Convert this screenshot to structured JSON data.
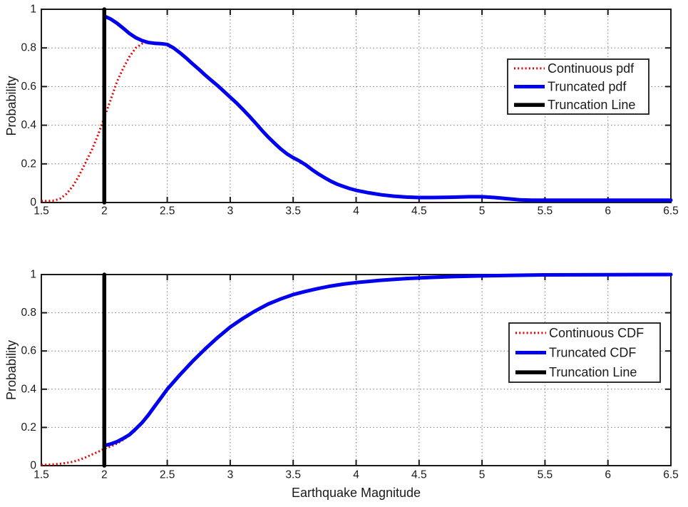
{
  "figure": {
    "background": "#ffffff",
    "border_color": "#1a1a1a",
    "grid_color": "#777777",
    "grid_style": "dotted",
    "x_axis_label": "Earthquake Magnitude"
  },
  "chart_data": [
    {
      "type": "line",
      "name": "truncated-pdf-plot",
      "title": "",
      "xlabel": "",
      "ylabel": "Probability",
      "xlim": [
        1.5,
        6.5
      ],
      "ylim": [
        0,
        1
      ],
      "x_ticks": [
        1.5,
        2,
        2.5,
        3,
        3.5,
        4,
        4.5,
        5,
        5.5,
        6,
        6.5
      ],
      "x_tick_labels": [
        "1.5",
        "2",
        "2.5",
        "3",
        "3.5",
        "4",
        "4.5",
        "5",
        "5.5",
        "6",
        "6.5"
      ],
      "y_ticks": [
        0,
        0.2,
        0.4,
        0.6,
        0.8,
        1
      ],
      "y_tick_labels": [
        "0",
        "0.2",
        "0.4",
        "0.6",
        "0.8",
        "1"
      ],
      "grid": "on",
      "legend_position": "upper-right-inside",
      "legend_entries": [
        "Continuous pdf",
        "Truncated pdf",
        "Truncation Line"
      ],
      "series": [
        {
          "name": "Continuous pdf",
          "color": "#e60000",
          "style": "dotted",
          "width": 3,
          "points": [
            [
              1.5,
              0.008
            ],
            [
              1.55,
              0.008
            ],
            [
              1.6,
              0.01
            ],
            [
              1.65,
              0.02
            ],
            [
              1.7,
              0.045
            ],
            [
              1.75,
              0.085
            ],
            [
              1.8,
              0.14
            ],
            [
              1.85,
              0.205
            ],
            [
              1.9,
              0.27
            ],
            [
              1.95,
              0.35
            ],
            [
              2.0,
              0.44
            ],
            [
              2.05,
              0.53
            ],
            [
              2.1,
              0.625
            ],
            [
              2.15,
              0.695
            ],
            [
              2.2,
              0.755
            ],
            [
              2.25,
              0.8
            ],
            [
              2.3,
              0.822
            ],
            [
              2.35,
              0.83
            ],
            [
              2.4,
              0.827
            ]
          ]
        },
        {
          "name": "Truncated pdf",
          "color": "#0000ee",
          "style": "solid",
          "width": 5,
          "points": [
            [
              2.0,
              0.965
            ],
            [
              2.05,
              0.95
            ],
            [
              2.1,
              0.928
            ],
            [
              2.15,
              0.902
            ],
            [
              2.2,
              0.875
            ],
            [
              2.25,
              0.853
            ],
            [
              2.3,
              0.838
            ],
            [
              2.35,
              0.828
            ],
            [
              2.4,
              0.824
            ],
            [
              2.45,
              0.822
            ],
            [
              2.5,
              0.818
            ],
            [
              2.55,
              0.8
            ],
            [
              2.6,
              0.775
            ],
            [
              2.65,
              0.748
            ],
            [
              2.7,
              0.718
            ],
            [
              2.75,
              0.69
            ],
            [
              2.8,
              0.66
            ],
            [
              2.85,
              0.632
            ],
            [
              2.9,
              0.605
            ],
            [
              2.95,
              0.575
            ],
            [
              3.0,
              0.545
            ],
            [
              3.05,
              0.515
            ],
            [
              3.1,
              0.482
            ],
            [
              3.15,
              0.448
            ],
            [
              3.2,
              0.412
            ],
            [
              3.25,
              0.375
            ],
            [
              3.3,
              0.34
            ],
            [
              3.35,
              0.308
            ],
            [
              3.4,
              0.278
            ],
            [
              3.45,
              0.252
            ],
            [
              3.5,
              0.232
            ],
            [
              3.55,
              0.215
            ],
            [
              3.6,
              0.195
            ],
            [
              3.65,
              0.17
            ],
            [
              3.7,
              0.148
            ],
            [
              3.75,
              0.128
            ],
            [
              3.8,
              0.11
            ],
            [
              3.85,
              0.095
            ],
            [
              3.9,
              0.083
            ],
            [
              3.95,
              0.072
            ],
            [
              4.0,
              0.063
            ],
            [
              4.1,
              0.05
            ],
            [
              4.2,
              0.04
            ],
            [
              4.3,
              0.033
            ],
            [
              4.4,
              0.028
            ],
            [
              4.5,
              0.026
            ],
            [
              4.6,
              0.026
            ],
            [
              4.7,
              0.027
            ],
            [
              4.8,
              0.028
            ],
            [
              4.9,
              0.03
            ],
            [
              5.0,
              0.03
            ],
            [
              5.1,
              0.026
            ],
            [
              5.2,
              0.02
            ],
            [
              5.3,
              0.014
            ],
            [
              5.4,
              0.012
            ],
            [
              5.5,
              0.012
            ],
            [
              5.75,
              0.012
            ],
            [
              6.0,
              0.012
            ],
            [
              6.25,
              0.012
            ],
            [
              6.5,
              0.012
            ]
          ]
        },
        {
          "name": "Truncation Line",
          "color": "#000000",
          "style": "solid",
          "width": 5.5,
          "points": [
            [
              2,
              0
            ],
            [
              2,
              1
            ]
          ]
        }
      ]
    },
    {
      "type": "line",
      "name": "truncated-cdf-plot",
      "title": "",
      "xlabel": "Earthquake Magnitude",
      "ylabel": "Probability",
      "xlim": [
        1.5,
        6.5
      ],
      "ylim": [
        0,
        1
      ],
      "x_ticks": [
        1.5,
        2,
        2.5,
        3,
        3.5,
        4,
        4.5,
        5,
        5.5,
        6,
        6.5
      ],
      "x_tick_labels": [
        "1.5",
        "2",
        "2.5",
        "3",
        "3.5",
        "4",
        "4.5",
        "5",
        "5.5",
        "6",
        "6.5"
      ],
      "y_ticks": [
        0,
        0.2,
        0.4,
        0.6,
        0.8,
        1
      ],
      "y_tick_labels": [
        "0",
        "0.2",
        "0.4",
        "0.6",
        "0.8",
        "1"
      ],
      "grid": "on",
      "legend_position": "right-inside",
      "legend_entries": [
        "Continuous CDF",
        "Truncated CDF",
        "Truncation Line"
      ],
      "series": [
        {
          "name": "Continuous CDF",
          "color": "#e60000",
          "style": "dotted",
          "width": 3,
          "points": [
            [
              1.5,
              0.004
            ],
            [
              1.55,
              0.005
            ],
            [
              1.6,
              0.007
            ],
            [
              1.65,
              0.01
            ],
            [
              1.7,
              0.014
            ],
            [
              1.75,
              0.02
            ],
            [
              1.8,
              0.03
            ],
            [
              1.85,
              0.043
            ],
            [
              1.9,
              0.058
            ],
            [
              1.95,
              0.072
            ],
            [
              2.0,
              0.088
            ],
            [
              2.05,
              0.1
            ],
            [
              2.1,
              0.115
            ],
            [
              2.15,
              0.135
            ],
            [
              2.2,
              0.158
            ],
            [
              2.25,
              0.185
            ]
          ]
        },
        {
          "name": "Truncated CDF",
          "color": "#0000ee",
          "style": "solid",
          "width": 5,
          "points": [
            [
              2.0,
              0.105
            ],
            [
              2.05,
              0.113
            ],
            [
              2.1,
              0.125
            ],
            [
              2.15,
              0.142
            ],
            [
              2.2,
              0.162
            ],
            [
              2.25,
              0.192
            ],
            [
              2.3,
              0.225
            ],
            [
              2.35,
              0.265
            ],
            [
              2.4,
              0.31
            ],
            [
              2.45,
              0.355
            ],
            [
              2.5,
              0.4
            ],
            [
              2.6,
              0.475
            ],
            [
              2.7,
              0.545
            ],
            [
              2.8,
              0.61
            ],
            [
              2.9,
              0.67
            ],
            [
              3.0,
              0.725
            ],
            [
              3.1,
              0.77
            ],
            [
              3.2,
              0.81
            ],
            [
              3.3,
              0.845
            ],
            [
              3.4,
              0.872
            ],
            [
              3.5,
              0.895
            ],
            [
              3.6,
              0.912
            ],
            [
              3.7,
              0.927
            ],
            [
              3.8,
              0.94
            ],
            [
              3.9,
              0.95
            ],
            [
              4.0,
              0.958
            ],
            [
              4.2,
              0.97
            ],
            [
              4.4,
              0.979
            ],
            [
              4.6,
              0.985
            ],
            [
              4.8,
              0.99
            ],
            [
              5.0,
              0.993
            ],
            [
              5.25,
              0.996
            ],
            [
              5.5,
              0.998
            ],
            [
              6.0,
              0.999
            ],
            [
              6.5,
              1.0
            ]
          ]
        },
        {
          "name": "Truncation Line",
          "color": "#000000",
          "style": "solid",
          "width": 5.5,
          "points": [
            [
              2,
              0
            ],
            [
              2,
              1
            ]
          ]
        }
      ]
    }
  ]
}
